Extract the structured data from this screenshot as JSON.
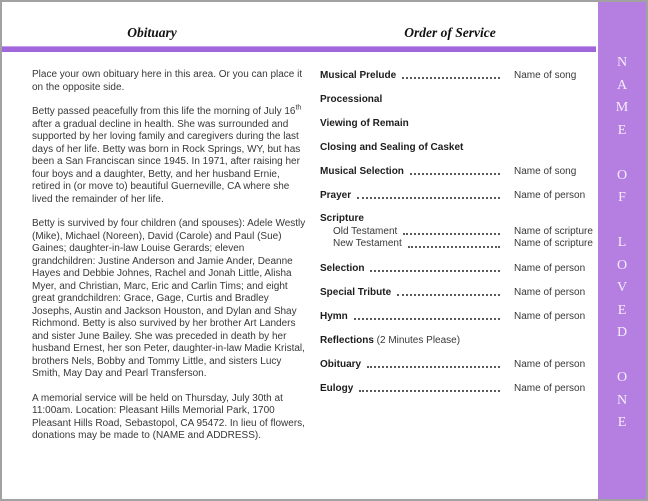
{
  "headings": {
    "left": "Obituary",
    "right": "Order of Service"
  },
  "colors": {
    "sidebar_background": "#b57fe2",
    "sidebar_letters": "#f5edfb",
    "divider": "#a166da",
    "page_border": "#a2a2a2"
  },
  "sidebar": {
    "text": "NAME OF LOVED ONE"
  },
  "obituary": {
    "paragraphs": [
      [
        {
          "t": "Place your own obituary here in this area. Or you can place it on the opposite side."
        }
      ],
      [
        {
          "t": "Betty passed peacefully from this life the morning of July 16"
        },
        {
          "t": "th",
          "sup": true
        },
        {
          "t": " after a gradual decline in health.  She was surrounded and supported by her loving family and caregivers during the last days of her life.  Betty was born in Rock Springs, WY, but has been a San Franciscan since 1945.  In 1971, after raising her four boys and a daughter, Betty, and her husband Ernie, retired in (or move to) beautiful Guerneville, CA where she lived the remainder of her life."
        }
      ],
      [
        {
          "t": "Betty is survived by four children (and spouses): Adele Westly (Mike), Michael (Noreen), David (Carole) and Paul (Sue) Gaines;  daughter-in-law Louise Gerards;  eleven grandchildren: Justine Anderson and Jamie Ander, Deanne Hayes and Debbie Johnes, Rachel and Jonah Little, Alisha Myer, and Christian, Marc, Eric and Carlin Tims;  and eight great grandchildren: Grace, Gage, Curtis and Bradley Josephs, Austin and Jackson Houston, and Dylan and Shay Richmond.  Betty is also survived by her brother Art Landers and sister June Bailey.  She was preceded in death by her husband Ernest, her son Peter, daughter-in-law Madie Kristal, brothers Nels, Bobby and Tommy Little, and sisters Lucy Smith, May Day and Pearl Transferson."
        }
      ],
      [
        {
          "t": "A memorial service will be held on Thursday, July 30th at 11:00am.  Location:  Pleasant Hills Memorial Park, 1700 Pleasant Hills Road, Sebastopol, CA 95472.  In lieu of flowers, donations may be made to (NAME and ADDRESS)."
        }
      ]
    ]
  },
  "order_of_service": {
    "items": [
      {
        "label": "Musical Prelude",
        "value": "Name of song"
      },
      {
        "label": "Processional"
      },
      {
        "label": "Viewing of Remain"
      },
      {
        "label": "Closing and Sealing of Casket"
      },
      {
        "label": "Musical Selection",
        "value": "Name of song"
      },
      {
        "label": "Prayer",
        "value": "Name of person"
      },
      {
        "label": "Scripture",
        "children": [
          {
            "label": "Old Testament",
            "value": "Name of scripture"
          },
          {
            "label": "New Testament",
            "value": "Name of scripture"
          }
        ]
      },
      {
        "label": "Selection",
        "value": "Name of person"
      },
      {
        "label": "Special Tribute",
        "value": "Name of person"
      },
      {
        "label": "Hymn",
        "value": "Name of person"
      },
      {
        "label": "Reflections",
        "note": "(2 Minutes Please)"
      },
      {
        "label": "Obituary",
        "value": "Name of person"
      },
      {
        "label": "Eulogy",
        "value": "Name of person"
      }
    ]
  }
}
